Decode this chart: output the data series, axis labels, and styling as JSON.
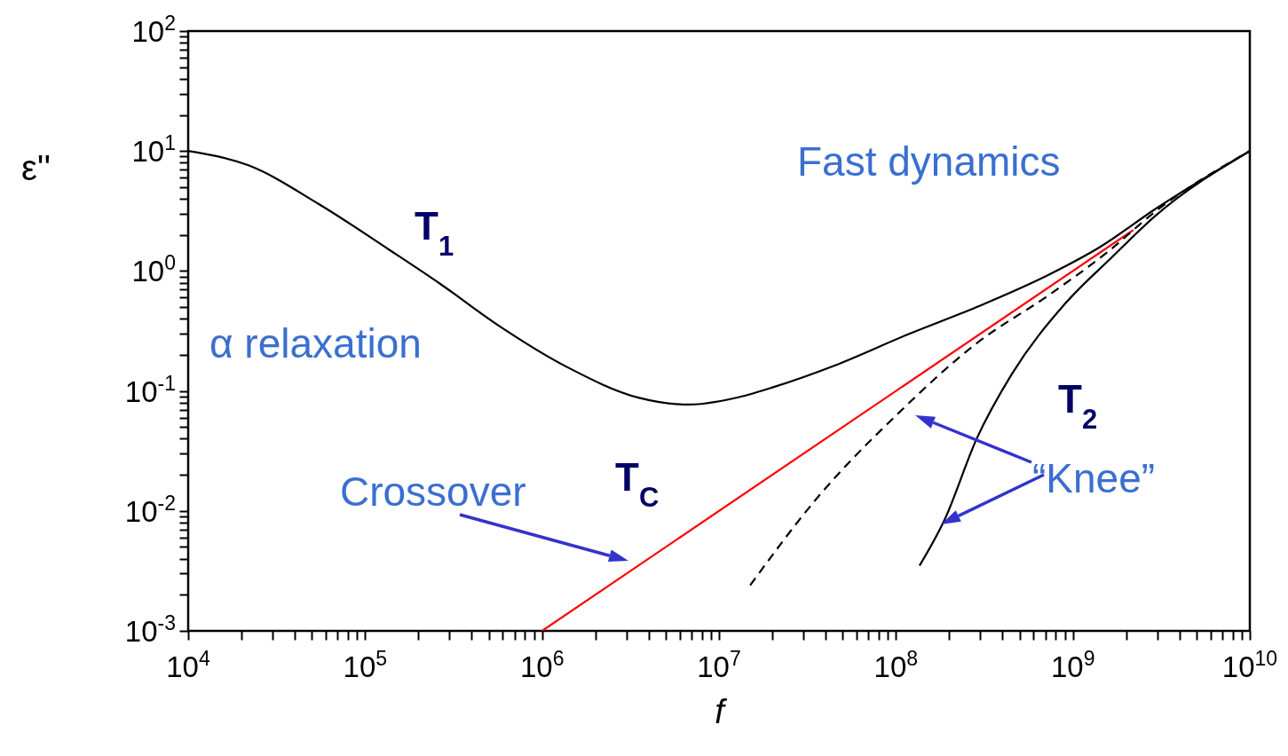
{
  "chart_data": {
    "type": "line",
    "xlabel": "f",
    "ylabel": "ε''",
    "log": "xy",
    "xlim": [
      10000,
      10000000000
    ],
    "ylim": [
      0.001,
      100
    ],
    "xticks": [
      {
        "value": 10000,
        "label": "10$^{4}$"
      },
      {
        "value": 20000,
        "label": null
      },
      {
        "value": 30000,
        "label": null
      },
      {
        "value": 40000,
        "label": null
      },
      {
        "value": 50000,
        "label": null
      },
      {
        "value": 60000,
        "label": null
      },
      {
        "value": 70000,
        "label": null
      },
      {
        "value": 80000,
        "label": null
      },
      {
        "value": 90000,
        "label": null
      },
      {
        "value": 100000,
        "label": "10$^{5}$"
      },
      {
        "value": 200000,
        "label": null
      },
      {
        "value": 300000,
        "label": null
      },
      {
        "value": 400000,
        "label": null
      },
      {
        "value": 500000,
        "label": null
      },
      {
        "value": 600000,
        "label": null
      },
      {
        "value": 700000,
        "label": null
      },
      {
        "value": 800000,
        "label": null
      },
      {
        "value": 900000,
        "label": null
      },
      {
        "value": 1000000,
        "label": "10$^{6}$"
      },
      {
        "value": 2000000,
        "label": null
      },
      {
        "value": 3000000,
        "label": null
      },
      {
        "value": 4000000,
        "label": null
      },
      {
        "value": 5000000,
        "label": null
      },
      {
        "value": 6000000,
        "label": null
      },
      {
        "value": 7000000,
        "label": null
      },
      {
        "value": 8000000,
        "label": null
      },
      {
        "value": 9000000,
        "label": null
      },
      {
        "value": 10000000,
        "label": "10$^{7}$"
      },
      {
        "value": 20000000,
        "label": null
      },
      {
        "value": 30000000,
        "label": null
      },
      {
        "value": 40000000,
        "label": null
      },
      {
        "value": 50000000,
        "label": null
      },
      {
        "value": 60000000,
        "label": null
      },
      {
        "value": 70000000,
        "label": null
      },
      {
        "value": 80000000,
        "label": null
      },
      {
        "value": 90000000,
        "label": null
      },
      {
        "value": 100000000,
        "label": "10$^{8}$"
      },
      {
        "value": 200000000,
        "label": null
      },
      {
        "value": 300000000,
        "label": null
      },
      {
        "value": 400000000,
        "label": null
      },
      {
        "value": 500000000,
        "label": null
      },
      {
        "value": 600000000,
        "label": null
      },
      {
        "value": 700000000,
        "label": null
      },
      {
        "value": 800000000,
        "label": null
      },
      {
        "value": 900000000,
        "label": null
      },
      {
        "value": 1000000000,
        "label": "10$^{9}$"
      },
      {
        "value": 2000000000,
        "label": null
      },
      {
        "value": 3000000000,
        "label": null
      },
      {
        "value": 4000000000,
        "label": null
      },
      {
        "value": 5000000000,
        "label": null
      },
      {
        "value": 6000000000,
        "label": null
      },
      {
        "value": 7000000000,
        "label": null
      },
      {
        "value": 8000000000,
        "label": null
      },
      {
        "value": 9000000000,
        "label": null
      },
      {
        "value": 10000000000,
        "label": "10$^{10}$"
      }
    ],
    "yticks": [
      {
        "value": 0.001,
        "label": "10$^{-3}$"
      },
      {
        "value": 0.002,
        "label": null
      },
      {
        "value": 0.003,
        "label": null
      },
      {
        "value": 0.004,
        "label": null
      },
      {
        "value": 0.005,
        "label": null
      },
      {
        "value": 0.006,
        "label": null
      },
      {
        "value": 0.007,
        "label": null
      },
      {
        "value": 0.008,
        "label": null
      },
      {
        "value": 0.009,
        "label": null
      },
      {
        "value": 0.01,
        "label": "10$^{-2}$"
      },
      {
        "value": 0.02,
        "label": null
      },
      {
        "value": 0.03,
        "label": null
      },
      {
        "value": 0.04,
        "label": null
      },
      {
        "value": 0.05,
        "label": null
      },
      {
        "value": 0.06,
        "label": null
      },
      {
        "value": 0.07,
        "label": null
      },
      {
        "value": 0.08,
        "label": null
      },
      {
        "value": 0.09,
        "label": null
      },
      {
        "value": 0.1,
        "label": "10$^{-1}$"
      },
      {
        "value": 0.2,
        "label": null
      },
      {
        "value": 0.3,
        "label": null
      },
      {
        "value": 0.4,
        "label": null
      },
      {
        "value": 0.5,
        "label": null
      },
      {
        "value": 0.6,
        "label": null
      },
      {
        "value": 0.7,
        "label": null
      },
      {
        "value": 0.8,
        "label": null
      },
      {
        "value": 0.9,
        "label": null
      },
      {
        "value": 1,
        "label": "10$^{0}$"
      },
      {
        "value": 2,
        "label": null
      },
      {
        "value": 3,
        "label": null
      },
      {
        "value": 4,
        "label": null
      },
      {
        "value": 5,
        "label": null
      },
      {
        "value": 6,
        "label": null
      },
      {
        "value": 7,
        "label": null
      },
      {
        "value": 8,
        "label": null
      },
      {
        "value": 9,
        "label": null
      },
      {
        "value": 10,
        "label": "10$^{1}$"
      },
      {
        "value": 20,
        "label": null
      },
      {
        "value": 30,
        "label": null
      },
      {
        "value": 40,
        "label": null
      },
      {
        "value": 50,
        "label": null
      },
      {
        "value": 60,
        "label": null
      },
      {
        "value": 70,
        "label": null
      },
      {
        "value": 80,
        "label": null
      },
      {
        "value": 90,
        "label": null
      },
      {
        "value": 100,
        "label": "10$^{2}$"
      }
    ],
    "series": [
      {
        "color": "#000000",
        "x": [
          10000,
          21900,
          55000,
          138000,
          266000,
          560000,
          1400000,
          3500000,
          6800000,
          12200000,
          20400000,
          45000000,
          113000000,
          286000000,
          720000000,
          1440000000,
          2900000000,
          10000000000
        ],
        "values": [
          10,
          7.6,
          3.6,
          1.49,
          0.78,
          0.356,
          0.157,
          0.088,
          0.077,
          0.087,
          0.108,
          0.163,
          0.29,
          0.5,
          0.92,
          1.6,
          3.26,
          10
        ]
      },
      {
        "color": "#ff0000",
        "x": [
          1000000,
          2200000000
        ],
        "values": [
          0.001,
          2.2
        ]
      },
      {
        "color": "#000000",
        "line_style": "dashed",
        "x": [
          15000000,
          35500000,
          103000000,
          286000000,
          720000000,
          1580000000,
          2900000000,
          10000000000
        ],
        "values": [
          0.0024,
          0.0126,
          0.065,
          0.25,
          0.62,
          1.45,
          3.1,
          10
        ]
      },
      {
        "color": "#000000",
        "x": [
          136000000,
          188000000,
          286000000,
          450000000,
          910000000,
          1660000000,
          2900000000,
          10000000000
        ],
        "values": [
          0.0035,
          0.0084,
          0.04,
          0.137,
          0.54,
          1.3,
          2.85,
          10
        ]
      }
    ],
    "annotations": [
      "T$_{1}$",
      "α relaxation",
      "Fast dynamics",
      "Crossover",
      "T$_{C}$",
      "T$_{2}$",
      "“Knee”"
    ]
  }
}
